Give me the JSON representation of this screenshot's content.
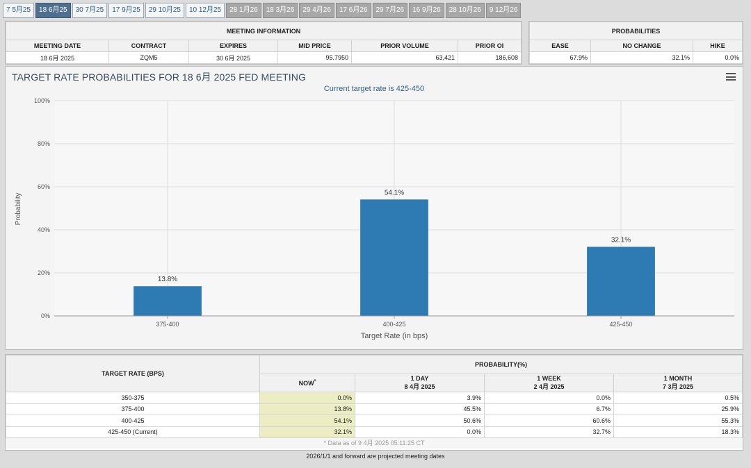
{
  "tabs": [
    {
      "label": "7 5月25",
      "state": "normal"
    },
    {
      "label": "18 6月25",
      "state": "active"
    },
    {
      "label": "30 7月25",
      "state": "normal"
    },
    {
      "label": "17 9月25",
      "state": "normal"
    },
    {
      "label": "29 10月25",
      "state": "normal"
    },
    {
      "label": "10 12月25",
      "state": "normal"
    },
    {
      "label": "28 1月26",
      "state": "future"
    },
    {
      "label": "18 3月26",
      "state": "future"
    },
    {
      "label": "29 4月26",
      "state": "future"
    },
    {
      "label": "17 6月26",
      "state": "future"
    },
    {
      "label": "29 7月26",
      "state": "future"
    },
    {
      "label": "16 9月26",
      "state": "future"
    },
    {
      "label": "28 10月26",
      "state": "future"
    },
    {
      "label": "9 12月26",
      "state": "future"
    }
  ],
  "meeting_info": {
    "title": "MEETING INFORMATION",
    "headers": {
      "meeting_date": "MEETING DATE",
      "contract": "CONTRACT",
      "expires": "EXPIRES",
      "mid_price": "MID PRICE",
      "prior_volume": "PRIOR VOLUME",
      "prior_oi": "PRIOR OI"
    },
    "values": {
      "meeting_date": "18 6月 2025",
      "contract": "ZQM5",
      "expires": "30 6月 2025",
      "mid_price": "95.7950",
      "prior_volume": "63,421",
      "prior_oi": "186,608"
    }
  },
  "probabilities": {
    "title": "PROBABILITIES",
    "headers": {
      "ease": "EASE",
      "no_change": "NO CHANGE",
      "hike": "HIKE"
    },
    "values": {
      "ease": "67.9%",
      "no_change": "32.1%",
      "hike": "0.0%"
    }
  },
  "chart": {
    "title": "TARGET RATE PROBABILITIES FOR 18 6月 2025 FED MEETING",
    "subtitle": "Current target rate is 425-450",
    "watermark": "Q",
    "bar_color": "#2e7bb4"
  },
  "chart_data": {
    "type": "bar",
    "title": "TARGET RATE PROBABILITIES FOR 18 6月 2025 FED MEETING",
    "subtitle": "Current target rate is 425-450",
    "categories": [
      "375-400",
      "400-425",
      "425-450"
    ],
    "values": [
      13.8,
      54.1,
      32.1
    ],
    "data_labels": [
      "13.8%",
      "54.1%",
      "32.1%"
    ],
    "xlabel": "Target Rate (in bps)",
    "ylabel": "Probability",
    "ylim": [
      0,
      100
    ],
    "yticks": [
      0,
      20,
      40,
      60,
      80,
      100
    ],
    "ytick_labels": [
      "0%",
      "20%",
      "40%",
      "60%",
      "80%",
      "100%"
    ],
    "grid": true
  },
  "prob_table": {
    "target_header": "TARGET RATE (BPS)",
    "prob_header": "PROBABILITY(%)",
    "col_now": "NOW",
    "col_now_marker": "*",
    "col_1day": "1 DAY",
    "col_1day_date": "8 4月 2025",
    "col_1week": "1 WEEK",
    "col_1week_date": "2 4月 2025",
    "col_1month": "1 MONTH",
    "col_1month_date": "7 3月 2025",
    "rows": [
      {
        "rate": "350-375",
        "now": "0.0%",
        "day": "3.9%",
        "week": "0.0%",
        "month": "0.5%"
      },
      {
        "rate": "375-400",
        "now": "13.8%",
        "day": "45.5%",
        "week": "6.7%",
        "month": "25.9%"
      },
      {
        "rate": "400-425",
        "now": "54.1%",
        "day": "50.6%",
        "week": "60.6%",
        "month": "55.3%"
      },
      {
        "rate": "425-450 (Current)",
        "now": "32.1%",
        "day": "0.0%",
        "week": "32.7%",
        "month": "18.3%"
      }
    ],
    "as_of": "* Data as of 9 4月 2025 05:11:25 CT"
  },
  "footnote": "2026/1/1 and forward are projected meeting dates"
}
